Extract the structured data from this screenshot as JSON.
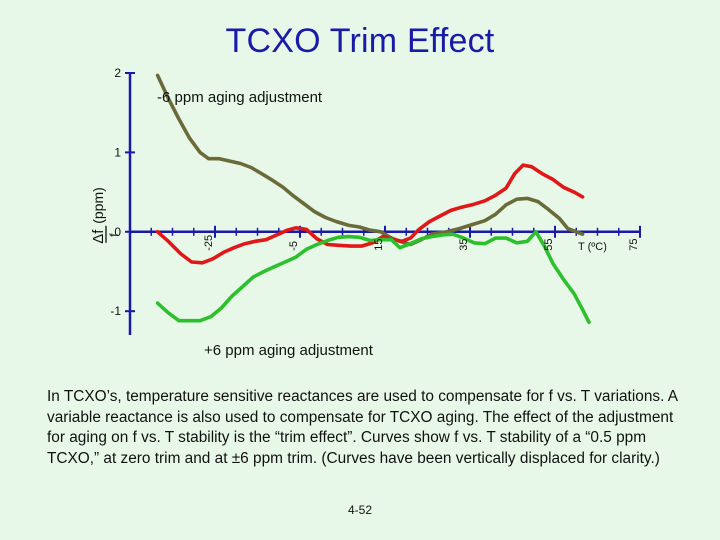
{
  "slide": {
    "title": "TCXO Trim Effect",
    "caption": "In TCXO’s, temperature sensitive reactances are used to compensate for f vs. T variations.  A variable reactance is also used to compensate for TCXO aging.  The effect of the adjustment for aging on f vs. T stability is the “trim effect”.  Curves show f vs. T stability of a “0.5 ppm TCXO,” at zero trim and at ±6 ppm trim.  (Curves have been vertically displaced for clarity.)",
    "page_number": "4-52"
  },
  "chart_data": {
    "type": "line",
    "title": "TCXO Trim Effect",
    "xlabel": "T (ºC)",
    "ylabel_symbol": "Δf",
    "ylabel_denominator": "f",
    "ylabel_unit": "(ppm)",
    "x_ticks": [
      "-25",
      "-5",
      "15",
      "35",
      "55",
      "75"
    ],
    "y_ticks": [
      "2",
      "1",
      "0",
      "-1"
    ],
    "xlim": [
      -45,
      75
    ],
    "ylim": [
      -1.3,
      2
    ],
    "grid": false,
    "colors": {
      "axis": "#1a1aa8",
      "minus6": "#6b6b3a",
      "zero": "#e01818",
      "plus6": "#2cc02c"
    },
    "annotations": {
      "minus6": "-6 ppm aging adjustment",
      "plus6": "+6 ppm aging adjustment"
    },
    "series": [
      {
        "key": "minus6",
        "values": [
          [
            -38.5,
            1.97
          ],
          [
            -36,
            1.68
          ],
          [
            -33.5,
            1.42
          ],
          [
            -31,
            1.18
          ],
          [
            -28.5,
            1.0
          ],
          [
            -26.5,
            0.92
          ],
          [
            -24,
            0.92
          ],
          [
            -21.5,
            0.89
          ],
          [
            -19,
            0.86
          ],
          [
            -16.5,
            0.81
          ],
          [
            -14,
            0.73
          ],
          [
            -11.5,
            0.65
          ],
          [
            -9,
            0.56
          ],
          [
            -6.5,
            0.45
          ],
          [
            -4,
            0.35
          ],
          [
            -1.5,
            0.25
          ],
          [
            1,
            0.18
          ],
          [
            3.5,
            0.13
          ],
          [
            6.5,
            0.08
          ],
          [
            9,
            0.06
          ],
          [
            11.5,
            0.02
          ],
          [
            14,
            0.0
          ],
          [
            16.5,
            -0.08
          ],
          [
            18.5,
            -0.12
          ],
          [
            21,
            -0.16
          ],
          [
            23.5,
            -0.1
          ],
          [
            26,
            -0.03
          ],
          [
            29.5,
            0.0
          ],
          [
            32.5,
            0.04
          ],
          [
            35.5,
            0.09
          ],
          [
            38.5,
            0.14
          ],
          [
            41,
            0.22
          ],
          [
            43.5,
            0.34
          ],
          [
            46,
            0.41
          ],
          [
            48.5,
            0.42
          ],
          [
            51,
            0.38
          ],
          [
            53.5,
            0.28
          ],
          [
            56,
            0.17
          ],
          [
            58,
            0.04
          ],
          [
            60,
            0.0
          ],
          [
            61.5,
            -0.03
          ]
        ]
      },
      {
        "key": "zero",
        "values": [
          [
            -38.5,
            0.0
          ],
          [
            -36,
            -0.12
          ],
          [
            -33,
            -0.28
          ],
          [
            -30.5,
            -0.38
          ],
          [
            -28,
            -0.39
          ],
          [
            -25.5,
            -0.34
          ],
          [
            -23,
            -0.26
          ],
          [
            -20.5,
            -0.2
          ],
          [
            -18,
            -0.15
          ],
          [
            -15.5,
            -0.12
          ],
          [
            -13,
            -0.1
          ],
          [
            -10.5,
            -0.04
          ],
          [
            -8,
            0.02
          ],
          [
            -6,
            0.05
          ],
          [
            -3.5,
            0.03
          ],
          [
            -1,
            -0.09
          ],
          [
            1.5,
            -0.16
          ],
          [
            4,
            -0.17
          ],
          [
            7,
            -0.18
          ],
          [
            9.5,
            -0.18
          ],
          [
            12,
            -0.14
          ],
          [
            14.5,
            -0.06
          ],
          [
            17,
            -0.1
          ],
          [
            19,
            -0.12
          ],
          [
            21,
            -0.08
          ],
          [
            23,
            0.03
          ],
          [
            25.5,
            0.13
          ],
          [
            28,
            0.2
          ],
          [
            30.5,
            0.27
          ],
          [
            33,
            0.31
          ],
          [
            35.5,
            0.34
          ],
          [
            38.5,
            0.39
          ],
          [
            41,
            0.46
          ],
          [
            43.5,
            0.55
          ],
          [
            45.5,
            0.73
          ],
          [
            47.5,
            0.84
          ],
          [
            49.5,
            0.82
          ],
          [
            52,
            0.73
          ],
          [
            54.5,
            0.66
          ],
          [
            57,
            0.56
          ],
          [
            59.5,
            0.5
          ],
          [
            61.5,
            0.44
          ]
        ]
      },
      {
        "key": "plus6",
        "values": [
          [
            -38.5,
            -0.9
          ],
          [
            -36,
            -1.02
          ],
          [
            -33.5,
            -1.12
          ],
          [
            -31,
            -1.12
          ],
          [
            -28.5,
            -1.12
          ],
          [
            -26,
            -1.07
          ],
          [
            -23.5,
            -0.96
          ],
          [
            -21,
            -0.81
          ],
          [
            -18.5,
            -0.69
          ],
          [
            -16,
            -0.57
          ],
          [
            -13.5,
            -0.5
          ],
          [
            -11,
            -0.44
          ],
          [
            -8.5,
            -0.38
          ],
          [
            -6,
            -0.32
          ],
          [
            -3.5,
            -0.22
          ],
          [
            -1,
            -0.16
          ],
          [
            1.5,
            -0.11
          ],
          [
            4,
            -0.07
          ],
          [
            6.5,
            -0.06
          ],
          [
            9,
            -0.07
          ],
          [
            11.5,
            -0.11
          ],
          [
            14,
            -0.1
          ],
          [
            16.5,
            -0.1
          ],
          [
            18.5,
            -0.2
          ],
          [
            21,
            -0.15
          ],
          [
            23.5,
            -0.09
          ],
          [
            26,
            -0.06
          ],
          [
            28.5,
            -0.04
          ],
          [
            31,
            -0.03
          ],
          [
            33.5,
            -0.08
          ],
          [
            36,
            -0.14
          ],
          [
            38.5,
            -0.15
          ],
          [
            41,
            -0.08
          ],
          [
            43.5,
            -0.08
          ],
          [
            46,
            -0.14
          ],
          [
            48.5,
            -0.12
          ],
          [
            50.5,
            0.0
          ],
          [
            52.5,
            -0.18
          ],
          [
            54.5,
            -0.4
          ],
          [
            57,
            -0.6
          ],
          [
            59.5,
            -0.78
          ],
          [
            61.5,
            -0.98
          ],
          [
            63,
            -1.14
          ]
        ]
      }
    ]
  }
}
